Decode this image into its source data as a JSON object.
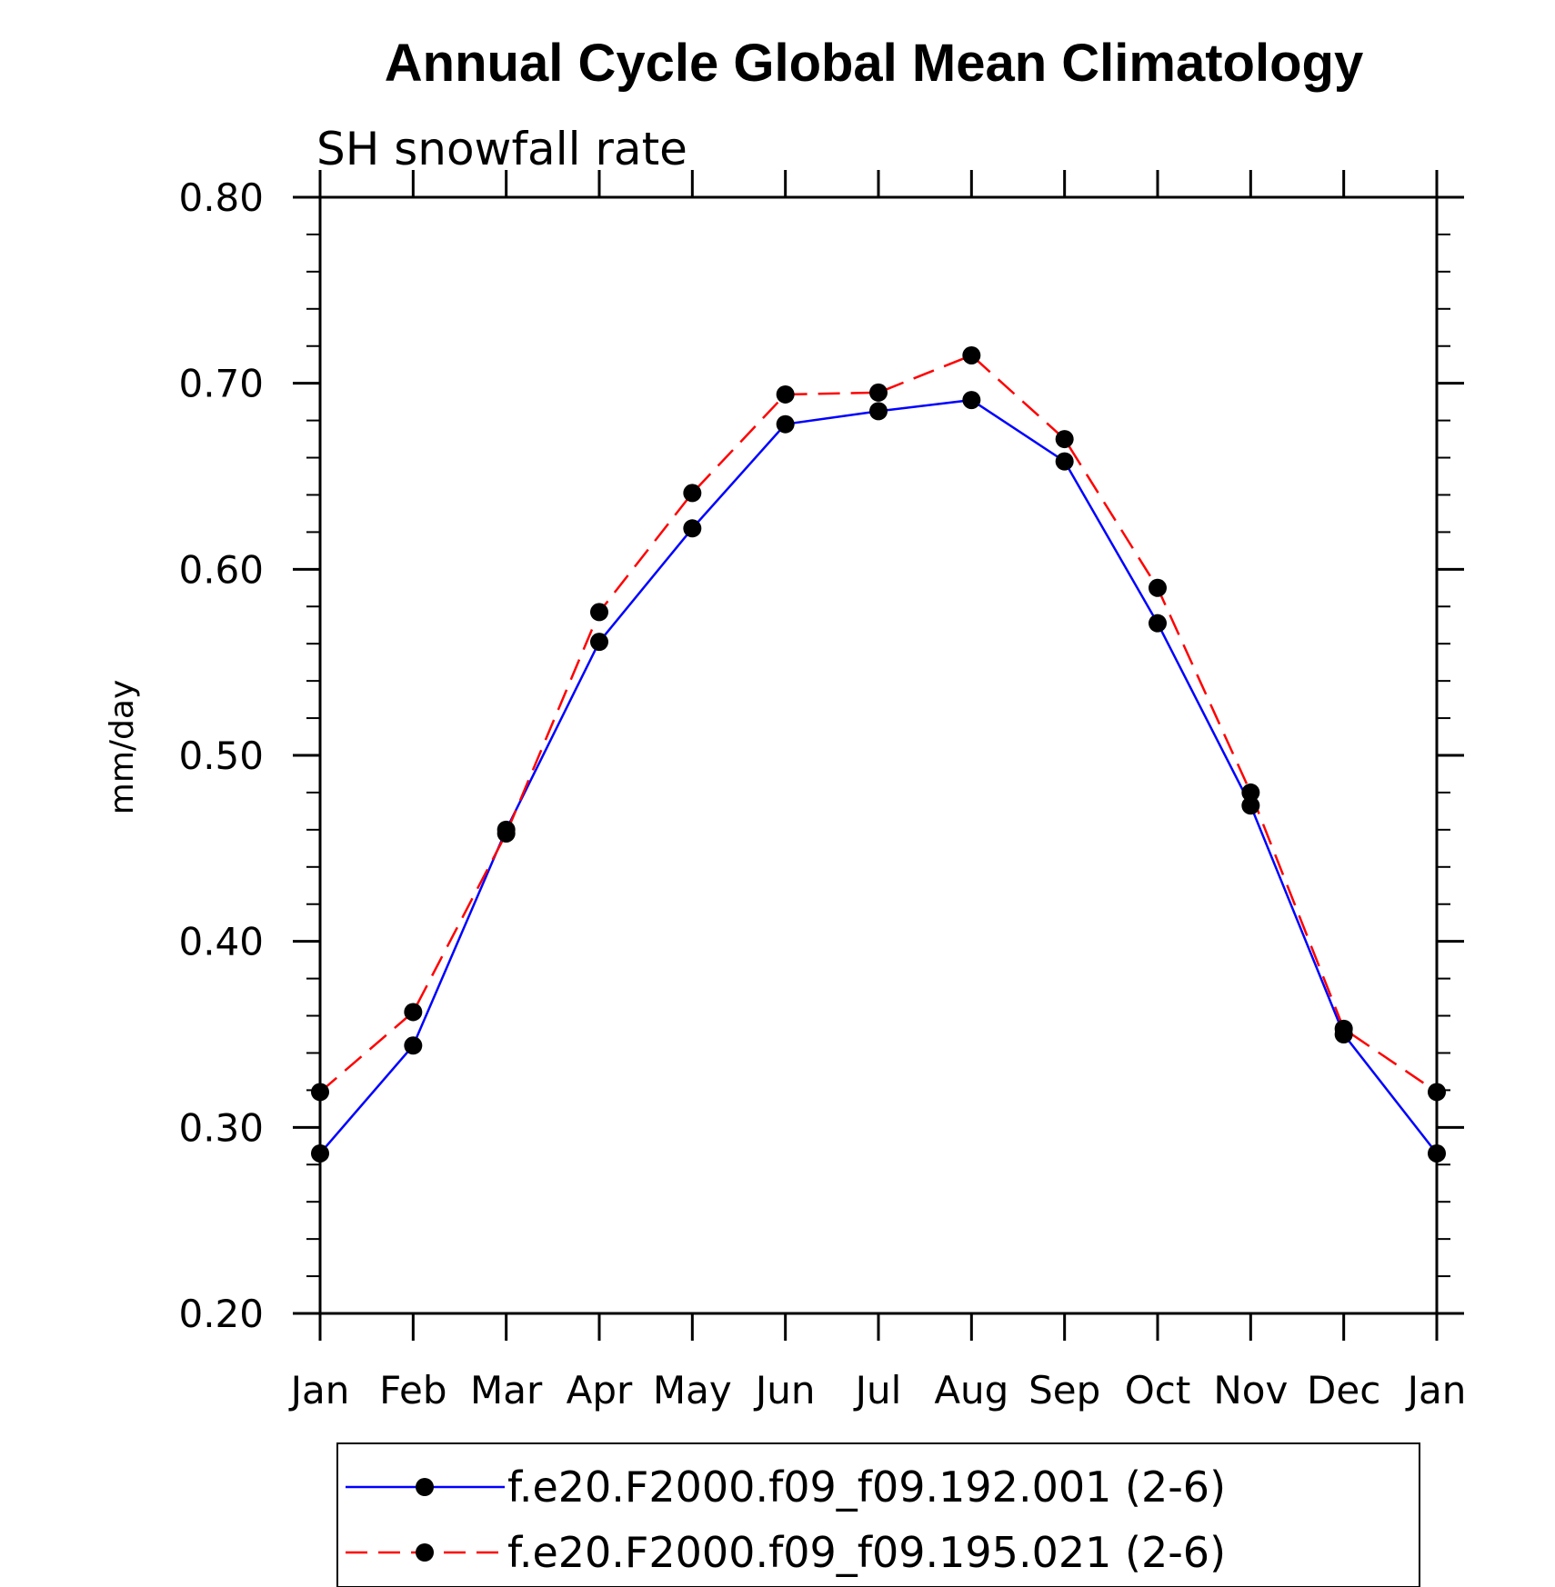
{
  "chart_data": {
    "type": "line",
    "title": "Annual Cycle Global Mean Climatology",
    "subtitle": "SH snowfall rate",
    "xlabel": "",
    "ylabel": "mm/day",
    "categories": [
      "Jan",
      "Feb",
      "Mar",
      "Apr",
      "May",
      "Jun",
      "Jul",
      "Aug",
      "Sep",
      "Oct",
      "Nov",
      "Dec",
      "Jan"
    ],
    "ylim": [
      0.2,
      0.8
    ],
    "yticks": [
      "0.20",
      "0.30",
      "0.40",
      "0.50",
      "0.60",
      "0.70",
      "0.80"
    ],
    "series": [
      {
        "name": "f.e20.F2000.f09_f09.192.001 (2-6)",
        "color": "#0000ff",
        "style": "solid",
        "values": [
          0.286,
          0.344,
          0.46,
          0.561,
          0.622,
          0.678,
          0.685,
          0.691,
          0.658,
          0.571,
          0.473,
          0.35,
          0.286
        ]
      },
      {
        "name": "f.e20.F2000.f09_f09.195.021 (2-6)",
        "color": "#ff0000",
        "style": "dashed",
        "values": [
          0.319,
          0.362,
          0.458,
          0.577,
          0.641,
          0.694,
          0.695,
          0.715,
          0.67,
          0.59,
          0.48,
          0.353,
          0.319
        ]
      }
    ],
    "legend_position": "bottom"
  }
}
